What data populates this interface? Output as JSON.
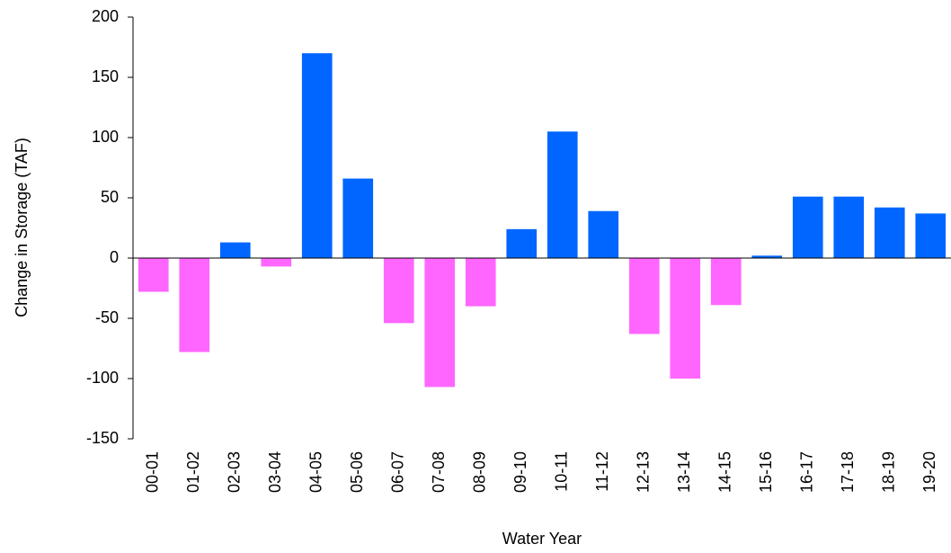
{
  "chart_data": {
    "type": "bar",
    "x_label": "Water Year",
    "y_label": "Change in Storage (TAF)",
    "categories": [
      "00-01",
      "01-02",
      "02-03",
      "03-04",
      "04-05",
      "05-06",
      "06-07",
      "07-08",
      "08-09",
      "09-10",
      "10-11",
      "11-12",
      "12-13",
      "13-14",
      "14-15",
      "15-16",
      "16-17",
      "17-18",
      "18-19",
      "19-20"
    ],
    "values": [
      -28,
      -78,
      13,
      -7,
      170,
      66,
      -54,
      -107,
      -40,
      24,
      105,
      39,
      -63,
      -100,
      -39,
      2,
      51,
      51,
      42,
      37
    ],
    "positive_color": "#0066ff",
    "negative_color": "#ff66ff",
    "ylim": [
      -150,
      200
    ],
    "yticks": [
      -150,
      -100,
      -50,
      0,
      50,
      100,
      150,
      200
    ],
    "grid": false
  }
}
